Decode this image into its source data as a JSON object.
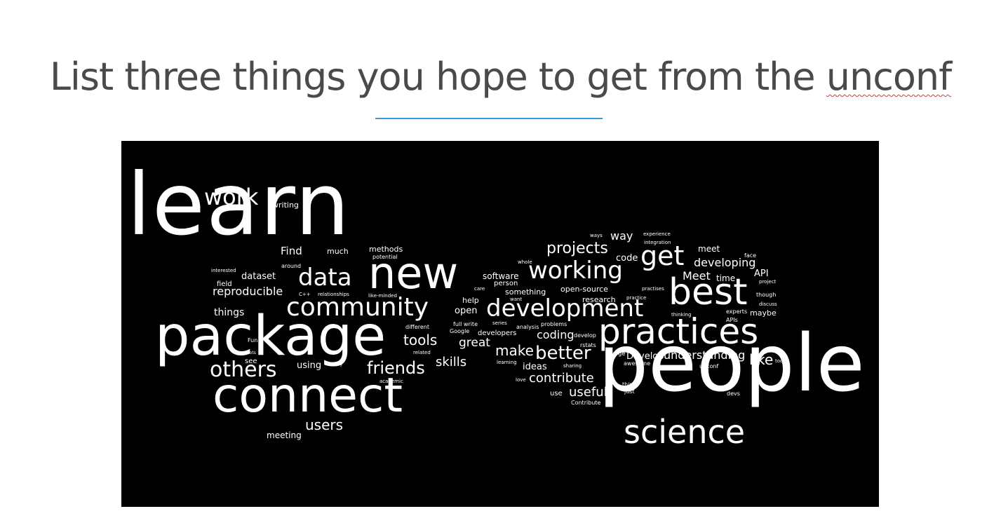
{
  "slide": {
    "title_main": "List three things you hope to get from the ",
    "title_flagged": "unconf",
    "accent_color": "#3b9ad9",
    "spellcheck_color": "#d33"
  },
  "cloud_words": [
    "learn",
    "people",
    "package",
    "connect",
    "new",
    "practices",
    "best",
    "community",
    "development",
    "science",
    "get",
    "working",
    "data",
    "work",
    "others",
    "friends",
    "users",
    "projects",
    "better",
    "tools",
    "make",
    "great",
    "contribute",
    "useful",
    "like",
    "skills",
    "coding",
    "ideas",
    "Develop",
    "understanding",
    "developing",
    "Meet",
    "reproducible",
    "dataset",
    "things",
    "way",
    "software",
    "code",
    "meet",
    "open",
    "API",
    "time",
    "Find",
    "much",
    "methods",
    "writing",
    "using",
    "see",
    "meeting",
    "field",
    "Fun",
    "something",
    "open-source",
    "research",
    "help",
    "person",
    "developers",
    "Google",
    "full write",
    "different",
    "potential",
    "around",
    "interested",
    "relationships",
    "like-minded",
    "C++",
    "related",
    "academic",
    "analysis",
    "problems",
    "series",
    "sharing",
    "learning",
    "love",
    "use",
    "Contribute",
    "just",
    "think",
    "awesome",
    "large",
    "unconf",
    "devs",
    "rstats",
    "develop",
    "even",
    "tool",
    "though",
    "discuss",
    "experts",
    "maybe",
    "APIs",
    "project",
    "face",
    "practises",
    "practice",
    "experience",
    "integration",
    "ways",
    "want",
    "whole",
    "care",
    "thinking",
    "going",
    "lots"
  ]
}
